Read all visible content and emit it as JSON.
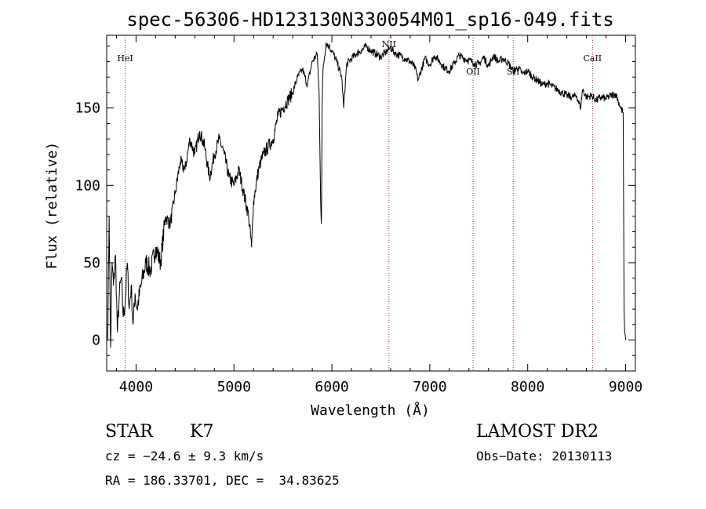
{
  "chart_data": {
    "type": "line",
    "title": "spec-56306-HD123130N330054M01_sp16-049.fits",
    "xlabel": "Wavelength (Å)",
    "ylabel": "Flux (relative)",
    "xlim": [
      3700,
      9100
    ],
    "ylim": [
      -20,
      197
    ],
    "xticks": [
      4000,
      5000,
      6000,
      7000,
      8000,
      9000
    ],
    "yticks": [
      0,
      50,
      100,
      150
    ],
    "grid": false,
    "line_color": "#000000",
    "marker_color": "#b22222",
    "lines": [
      {
        "label": "HeI",
        "wavelength": 3889
      },
      {
        "label": "NII",
        "wavelength": 6583
      },
      {
        "label": "OII",
        "wavelength": 7442
      },
      {
        "label": "SII",
        "wavelength": 7852
      },
      {
        "label": "CaII",
        "wavelength": 8662
      }
    ],
    "series": [
      {
        "x": [
          3710,
          3725,
          3740,
          3755,
          3770,
          3790,
          3810,
          3830,
          3850,
          3870,
          3890,
          3910,
          3930,
          3950,
          3970,
          3990,
          4010,
          4050,
          4100,
          4150,
          4200,
          4250,
          4300,
          4350,
          4400,
          4450,
          4500,
          4550,
          4600,
          4650,
          4700,
          4750,
          4800,
          4850,
          4900,
          4950,
          5000,
          5050,
          5100,
          5150,
          5180,
          5200,
          5250,
          5300,
          5350,
          5400,
          5450,
          5500,
          5550,
          5600,
          5650,
          5700,
          5750,
          5800,
          5850,
          5870,
          5885,
          5893,
          5900,
          5910,
          5940,
          5970,
          6000,
          6050,
          6100,
          6120,
          6150,
          6200,
          6250,
          6300,
          6350,
          6400,
          6450,
          6500,
          6550,
          6583,
          6600,
          6650,
          6700,
          6750,
          6800,
          6850,
          6880,
          6950,
          7000,
          7050,
          7100,
          7150,
          7200,
          7250,
          7300,
          7350,
          7400,
          7450,
          7500,
          7550,
          7600,
          7650,
          7700,
          7750,
          7800,
          7850,
          7900,
          7950,
          8000,
          8050,
          8100,
          8150,
          8200,
          8250,
          8300,
          8350,
          8400,
          8450,
          8500,
          8540,
          8560,
          8600,
          8650,
          8700,
          8750,
          8800,
          8850,
          8900,
          8950,
          8975,
          8985,
          8990,
          9000
        ],
        "y": [
          0,
          80,
          -5,
          50,
          35,
          55,
          5,
          30,
          40,
          15,
          25,
          50,
          20,
          35,
          10,
          30,
          20,
          35,
          50,
          45,
          60,
          50,
          80,
          75,
          95,
          115,
          110,
          130,
          120,
          135,
          125,
          105,
          120,
          130,
          120,
          105,
          100,
          110,
          95,
          80,
          60,
          90,
          110,
          120,
          125,
          130,
          145,
          150,
          155,
          160,
          170,
          175,
          165,
          180,
          185,
          160,
          90,
          75,
          150,
          175,
          192,
          190,
          187,
          180,
          170,
          150,
          178,
          182,
          185,
          187,
          190,
          187,
          185,
          183,
          186,
          188,
          189,
          185,
          184,
          182,
          180,
          176,
          168,
          182,
          178,
          184,
          180,
          176,
          174,
          179,
          184,
          182,
          181,
          179,
          178,
          183,
          177,
          184,
          180,
          182,
          179,
          174,
          176,
          172,
          174,
          170,
          168,
          165,
          166,
          164,
          162,
          160,
          158,
          157,
          158,
          150,
          162,
          157,
          158,
          155,
          157,
          156,
          158,
          159,
          150,
          147,
          20,
          5,
          0
        ]
      }
    ]
  },
  "info": {
    "object_type": "STAR",
    "subclass": "K7",
    "survey": "LAMOST DR2",
    "cz": "cz = −24.6 ± 9.3 km/s",
    "obs_date": "Obs−Date: 20130113",
    "radec": "RA = 186.33701, DEC =  34.83625"
  }
}
